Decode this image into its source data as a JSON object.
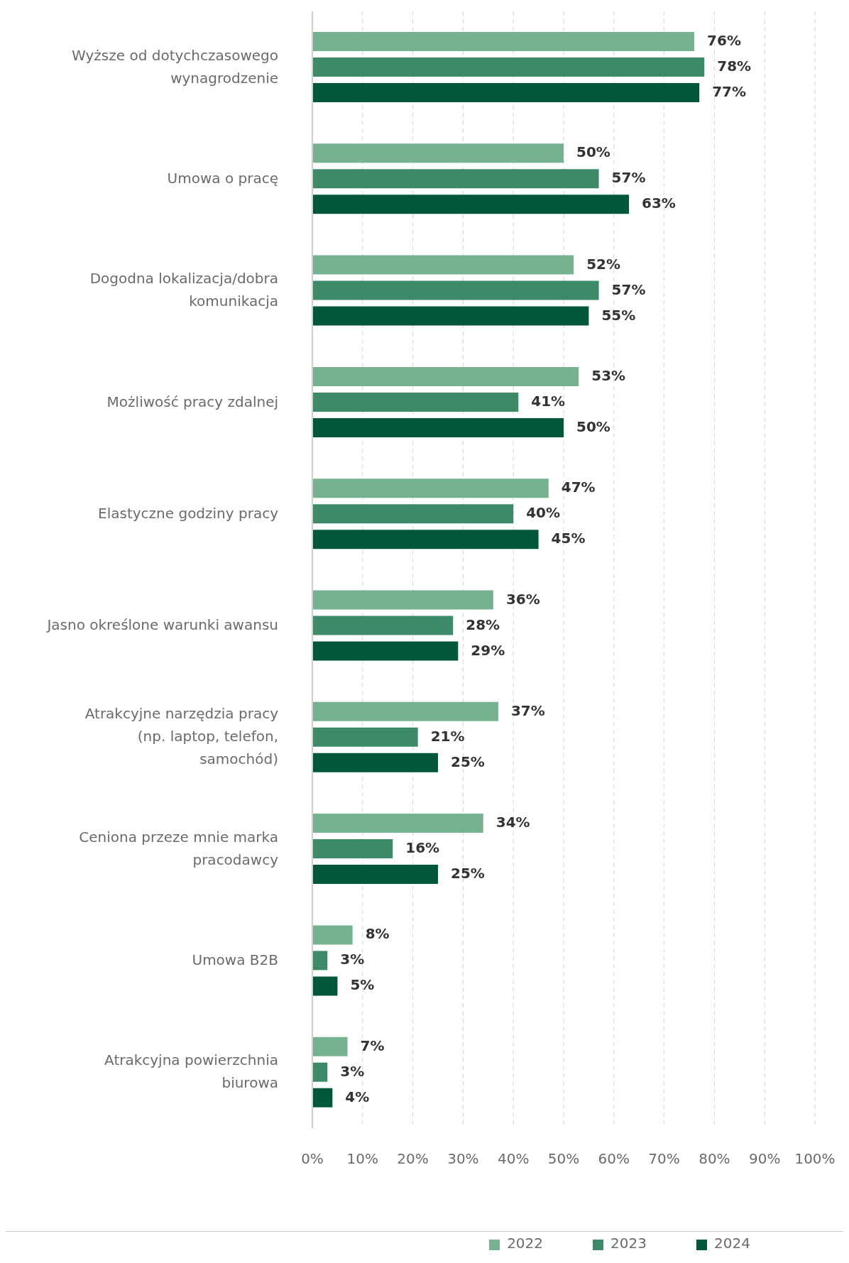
{
  "chart_data": {
    "type": "bar",
    "orientation": "horizontal",
    "categories": [
      "Wyższe od dotychczasowego wynagrodzenie",
      "Umowa o pracę",
      "Dogodna lokalizacja/dobra komunikacja",
      "Możliwość pracy zdalnej",
      "Elastyczne godziny pracy",
      "Jasno określone warunki awansu",
      "Atrakcyjne narzędzia pracy (np. laptop, telefon, samochód)",
      "Ceniona przeze mnie marka pracodawcy",
      "Umowa B2B",
      "Atrakcyjna powierzchnia biurowa"
    ],
    "series": [
      {
        "name": "2022",
        "color": "#76b28f",
        "values": [
          76,
          50,
          52,
          53,
          47,
          36,
          37,
          34,
          8,
          7
        ],
        "value_labels": [
          "76%",
          "50%",
          "52%",
          "53%",
          "47%",
          "36%",
          "37%",
          "34%",
          "8%",
          "7%"
        ]
      },
      {
        "name": "2023",
        "color": "#3d8a68",
        "values": [
          78,
          57,
          57,
          41,
          40,
          28,
          21,
          16,
          3,
          3
        ],
        "value_labels": [
          "78%",
          "57%",
          "57%",
          "41%",
          "40%",
          "28%",
          "21%",
          "16%",
          "3%",
          "3%"
        ]
      },
      {
        "name": "2024",
        "color": "#00573a",
        "values": [
          77,
          63,
          55,
          50,
          45,
          29,
          25,
          25,
          5,
          4
        ],
        "value_labels": [
          "77%",
          "63%",
          "55%",
          "50%",
          "45%",
          "29%",
          "25%",
          "25%",
          "5%",
          "4%"
        ]
      }
    ],
    "xlim": [
      0,
      100
    ],
    "xticks": [
      {
        "value": 0,
        "label": "0%"
      },
      {
        "value": 10,
        "label": "10%"
      },
      {
        "value": 20,
        "label": "20%"
      },
      {
        "value": 30,
        "label": "30%"
      },
      {
        "value": 40,
        "label": "40%"
      },
      {
        "value": 50,
        "label": "50%"
      },
      {
        "value": 60,
        "label": "60%"
      },
      {
        "value": 70,
        "label": "70%"
      },
      {
        "value": 80,
        "label": "80%"
      },
      {
        "value": 90,
        "label": "90%"
      },
      {
        "value": 100,
        "label": "100%"
      }
    ],
    "grid": "x",
    "legend": "bottom"
  }
}
